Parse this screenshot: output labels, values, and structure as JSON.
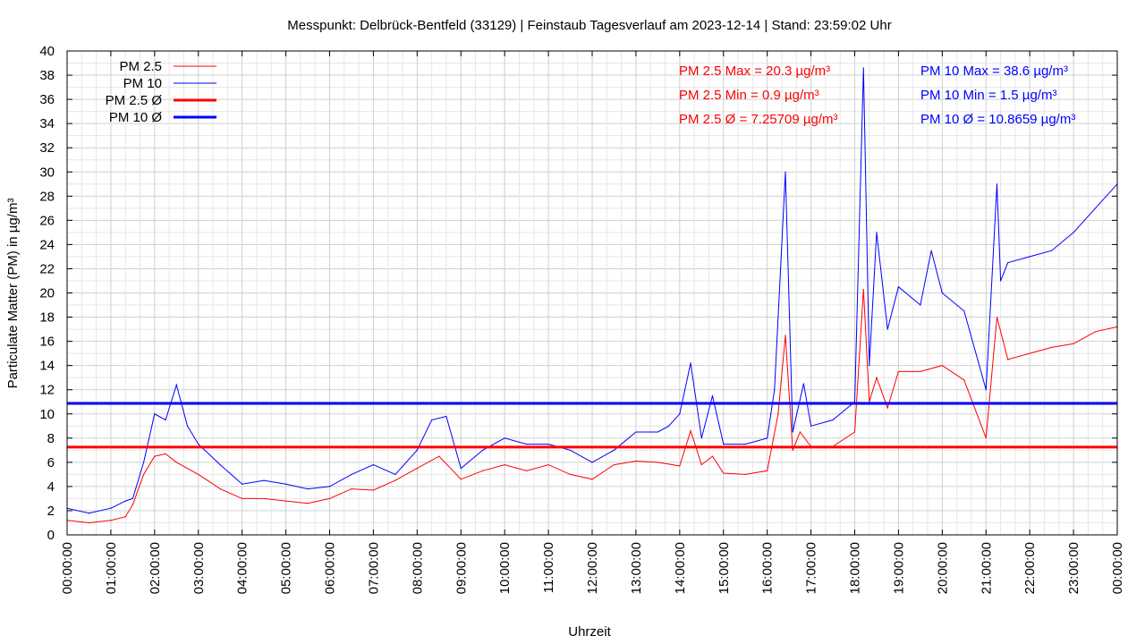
{
  "chart_data": {
    "type": "line",
    "title": "Messpunkt: Delbrück-Bentfeld (33129) | Feinstaub Tagesverlauf am 2023-12-14 | Stand: 23:59:02 Uhr",
    "xlabel": "Uhrzeit",
    "ylabel": "Particulate Matter (PM) in µg/m³",
    "xlim": [
      "2023-12-14 00:00:00",
      "2023-12-15 00:00:00"
    ],
    "ylim": [
      0,
      40
    ],
    "grid": true,
    "x_ticks": [
      "00:00:00",
      "01:00:00",
      "02:00:00",
      "03:00:00",
      "04:00:00",
      "05:00:00",
      "06:00:00",
      "07:00:00",
      "08:00:00",
      "09:00:00",
      "10:00:00",
      "11:00:00",
      "12:00:00",
      "13:00:00",
      "14:00:00",
      "15:00:00",
      "16:00:00",
      "17:00:00",
      "18:00:00",
      "19:00:00",
      "20:00:00",
      "21:00:00",
      "22:00:00",
      "23:00:00",
      "00:00:00"
    ],
    "y_ticks": [
      0,
      2,
      4,
      6,
      8,
      10,
      12,
      14,
      16,
      18,
      20,
      22,
      24,
      26,
      28,
      30,
      32,
      34,
      36,
      38,
      40
    ],
    "legend_position": "top-left",
    "series": [
      {
        "name": "PM 2.5",
        "color": "#ff0000",
        "x": [
          "00:00",
          "00:30",
          "01:00",
          "01:20",
          "01:30",
          "01:45",
          "02:00",
          "02:15",
          "02:30",
          "03:00",
          "03:30",
          "04:00",
          "04:30",
          "05:00",
          "05:30",
          "06:00",
          "06:30",
          "07:00",
          "07:30",
          "08:00",
          "08:30",
          "09:00",
          "09:30",
          "10:00",
          "10:30",
          "11:00",
          "11:30",
          "12:00",
          "12:30",
          "13:00",
          "13:30",
          "14:00",
          "14:15",
          "14:30",
          "14:45",
          "15:00",
          "15:30",
          "16:00",
          "16:15",
          "16:25",
          "16:35",
          "16:45",
          "17:00",
          "17:30",
          "18:00",
          "18:12",
          "18:20",
          "18:30",
          "18:45",
          "19:00",
          "19:30",
          "20:00",
          "20:30",
          "21:00",
          "21:15",
          "21:30",
          "22:00",
          "22:30",
          "23:00",
          "23:30",
          "24:00"
        ],
        "values": [
          1.2,
          1.0,
          1.2,
          1.5,
          2.5,
          5.0,
          6.5,
          6.7,
          6.0,
          5.0,
          3.8,
          3.0,
          3.0,
          2.8,
          2.6,
          3.0,
          3.8,
          3.7,
          4.5,
          5.5,
          6.5,
          4.6,
          5.3,
          5.8,
          5.3,
          5.8,
          5.0,
          4.6,
          5.8,
          6.1,
          6.0,
          5.7,
          8.6,
          5.8,
          6.5,
          5.1,
          5.0,
          5.3,
          10.0,
          16.5,
          7.0,
          8.5,
          7.3,
          7.3,
          8.5,
          20.3,
          11.0,
          13.0,
          10.5,
          13.5,
          13.5,
          14.0,
          12.8,
          8.0,
          18.0,
          14.5,
          15.0,
          15.5,
          15.8,
          16.8,
          17.2
        ]
      },
      {
        "name": "PM 10",
        "color": "#0000ff",
        "x": [
          "00:00",
          "00:30",
          "01:00",
          "01:20",
          "01:30",
          "01:45",
          "02:00",
          "02:15",
          "02:30",
          "02:45",
          "03:00",
          "03:30",
          "04:00",
          "04:30",
          "05:00",
          "05:30",
          "06:00",
          "06:30",
          "07:00",
          "07:30",
          "08:00",
          "08:20",
          "08:40",
          "09:00",
          "09:30",
          "10:00",
          "10:30",
          "11:00",
          "11:30",
          "12:00",
          "12:30",
          "13:00",
          "13:30",
          "13:45",
          "14:00",
          "14:15",
          "14:30",
          "14:45",
          "15:00",
          "15:30",
          "16:00",
          "16:10",
          "16:25",
          "16:35",
          "16:50",
          "17:00",
          "17:30",
          "18:00",
          "18:12",
          "18:20",
          "18:30",
          "18:45",
          "19:00",
          "19:30",
          "19:45",
          "20:00",
          "20:30",
          "21:00",
          "21:15",
          "21:20",
          "21:30",
          "22:00",
          "22:30",
          "23:00",
          "23:30",
          "24:00"
        ],
        "values": [
          2.2,
          1.8,
          2.2,
          2.8,
          3.0,
          6.0,
          10.0,
          9.5,
          12.4,
          9.0,
          7.5,
          5.8,
          4.2,
          4.5,
          4.2,
          3.8,
          4.0,
          5.0,
          5.8,
          5.0,
          7.0,
          9.5,
          9.8,
          5.5,
          7.0,
          8.0,
          7.5,
          7.5,
          7.0,
          6.0,
          7.0,
          8.5,
          8.5,
          9.0,
          10.0,
          14.2,
          8.0,
          11.5,
          7.5,
          7.5,
          8.0,
          12.0,
          30.0,
          8.5,
          12.5,
          9.0,
          9.5,
          11.0,
          38.6,
          14.0,
          25.0,
          17.0,
          20.5,
          19.0,
          23.5,
          20.0,
          18.5,
          12.0,
          29.0,
          21.0,
          22.5,
          23.0,
          23.5,
          25.0,
          27.0,
          29.0
        ]
      },
      {
        "name": "PM 2.5 Ø",
        "color": "#ff0000",
        "constant": 7.25709
      },
      {
        "name": "PM 10 Ø",
        "color": "#0000ff",
        "constant": 10.8659
      }
    ],
    "legend": [
      {
        "label": "PM 2.5",
        "color": "#ff0000",
        "style": "thin"
      },
      {
        "label": "PM 10",
        "color": "#0000ff",
        "style": "thin"
      },
      {
        "label": "PM 2.5 Ø",
        "color": "#ff0000",
        "style": "thick"
      },
      {
        "label": "PM 10 Ø",
        "color": "#0000ff",
        "style": "thick"
      }
    ],
    "annotations": {
      "pm25": [
        "PM 2.5 Max = 20.3 µg/m³",
        "PM 2.5 Min = 0.9 µg/m³",
        "PM 2.5 Ø = 7.25709 µg/m³"
      ],
      "pm10": [
        "PM 10 Max = 38.6 µg/m³",
        "PM 10 Min = 1.5 µg/m³",
        "PM 10 Ø = 10.8659 µg/m³"
      ]
    }
  }
}
